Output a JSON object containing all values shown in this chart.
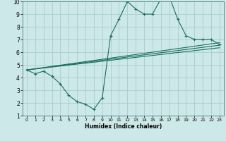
{
  "xlabel": "Humidex (Indice chaleur)",
  "xlim": [
    -0.5,
    23.5
  ],
  "ylim": [
    1,
    10
  ],
  "yticks": [
    1,
    2,
    3,
    4,
    5,
    6,
    7,
    8,
    9,
    10
  ],
  "xticks": [
    0,
    1,
    2,
    3,
    4,
    5,
    6,
    7,
    8,
    9,
    10,
    11,
    12,
    13,
    14,
    15,
    16,
    17,
    18,
    19,
    20,
    21,
    22,
    23
  ],
  "bg_color": "#cce8e8",
  "grid_color": "#aacccc",
  "line_color": "#1a6e60",
  "main_line_x": [
    0,
    1,
    2,
    3,
    4,
    5,
    6,
    7,
    8,
    9,
    10,
    11,
    12,
    13,
    14,
    15,
    16,
    17,
    18,
    19,
    20,
    21,
    22,
    23
  ],
  "main_line_y": [
    4.6,
    4.3,
    4.5,
    4.1,
    3.5,
    2.6,
    2.1,
    1.9,
    1.5,
    2.4,
    7.3,
    8.6,
    10.0,
    9.4,
    9.0,
    9.0,
    10.2,
    10.4,
    8.6,
    7.3,
    7.0,
    7.0,
    7.0,
    6.6
  ],
  "line2_x": [
    0,
    23
  ],
  "line2_y": [
    4.6,
    6.55
  ],
  "line3_x": [
    0,
    23
  ],
  "line3_y": [
    4.6,
    6.75
  ],
  "line4_x": [
    0,
    23
  ],
  "line4_y": [
    4.6,
    6.35
  ]
}
